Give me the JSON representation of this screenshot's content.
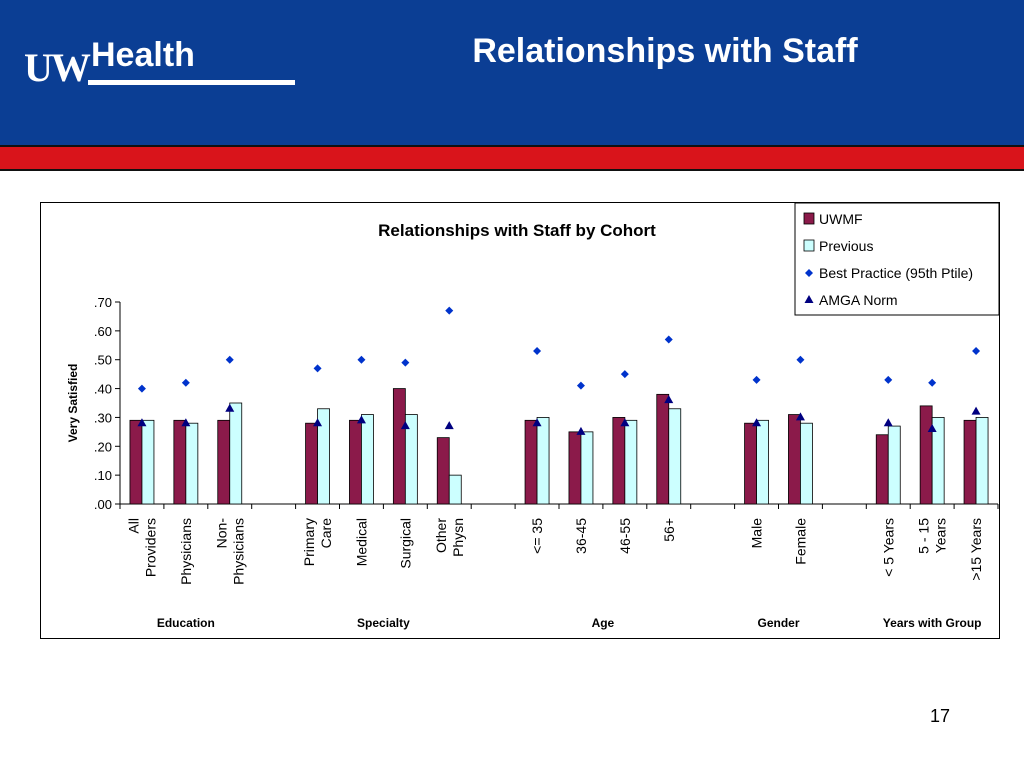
{
  "header": {
    "logo_uw": "UW",
    "logo_health": "Health",
    "title": "Relationships with Staff"
  },
  "page_number": "17",
  "colors": {
    "header_blue": "#0b3e94",
    "band_red": "#d9141b",
    "uwmf_bar": "#8b1a4a",
    "previous_bar": "#ccffff",
    "best_practice": "#0033cc",
    "amga": "#000080"
  },
  "chart_data": {
    "type": "bar",
    "title": "Relationships with Staff by Cohort",
    "ylabel": "Very Satisfied",
    "ylim": [
      0,
      0.7
    ],
    "yticks": [
      ".00",
      ".10",
      ".20",
      ".30",
      ".40",
      ".50",
      ".60",
      ".70"
    ],
    "legend_position": "top-right",
    "categories": [
      [
        "All",
        "Providers"
      ],
      [
        "Physicians"
      ],
      [
        "Non-",
        "Physicians"
      ],
      [
        "Primary",
        "Care"
      ],
      [
        "Medical"
      ],
      [
        "Surgical"
      ],
      [
        "Other",
        "Physn"
      ],
      [
        "<= 35"
      ],
      [
        "36-45"
      ],
      [
        "46-55"
      ],
      [
        "56+"
      ],
      [
        "Male"
      ],
      [
        "Female"
      ],
      [
        "< 5 Years"
      ],
      [
        "5 - 15",
        "Years"
      ],
      [
        ">15 Years"
      ]
    ],
    "groups": [
      {
        "label": "Education",
        "count": 3
      },
      {
        "label": "Specialty",
        "count": 4
      },
      {
        "label": "Age",
        "count": 4
      },
      {
        "label": "Gender",
        "count": 2
      },
      {
        "label": "Years with Group",
        "count": 3
      }
    ],
    "series": [
      {
        "name": "UWMF",
        "kind": "bar",
        "values": [
          0.29,
          0.29,
          0.29,
          0.28,
          0.29,
          0.4,
          0.23,
          0.29,
          0.25,
          0.3,
          0.38,
          0.28,
          0.31,
          0.24,
          0.34,
          0.29
        ]
      },
      {
        "name": "Previous",
        "kind": "bar",
        "values": [
          0.29,
          0.28,
          0.35,
          0.33,
          0.31,
          0.31,
          0.1,
          0.3,
          0.25,
          0.29,
          0.33,
          0.29,
          0.28,
          0.27,
          0.3,
          0.3
        ]
      },
      {
        "name": "Best Practice (95th Ptile)",
        "kind": "diamond",
        "values": [
          0.4,
          0.42,
          0.5,
          0.47,
          0.5,
          0.49,
          0.67,
          0.53,
          0.41,
          0.45,
          0.57,
          0.43,
          0.5,
          0.43,
          0.42,
          0.53
        ]
      },
      {
        "name": "AMGA Norm",
        "kind": "triangle",
        "values": [
          0.28,
          0.28,
          0.33,
          0.28,
          0.29,
          0.27,
          0.27,
          0.28,
          0.25,
          0.28,
          0.36,
          0.28,
          0.3,
          0.28,
          0.26,
          0.32
        ]
      }
    ]
  }
}
